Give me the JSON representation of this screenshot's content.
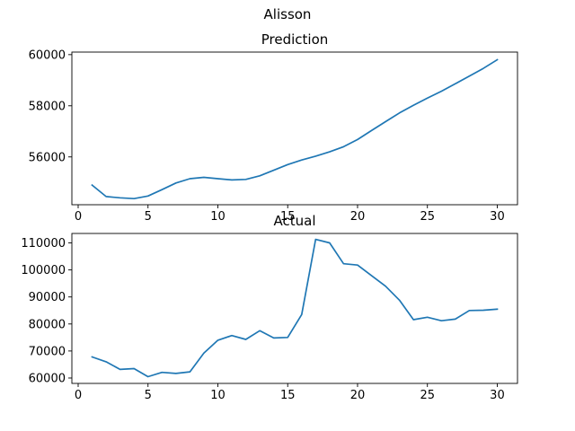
{
  "figure": {
    "suptitle": "Alisson"
  },
  "chart_data": [
    {
      "type": "line",
      "title": "Prediction",
      "xlabel": "",
      "ylabel": "",
      "xlim": [
        -0.45,
        31.45
      ],
      "ylim": [
        54130,
        60100
      ],
      "x_ticks": [
        0,
        5,
        10,
        15,
        20,
        25,
        30
      ],
      "y_ticks": [
        56000,
        58000,
        60000
      ],
      "x_tick_labels": [
        "0",
        "5",
        "10",
        "15",
        "20",
        "25",
        "30"
      ],
      "y_tick_labels": [
        "56000",
        "58000",
        "60000"
      ],
      "grid": false,
      "legend": "none",
      "color": "#1f77b4",
      "x": [
        1,
        2,
        3,
        4,
        5,
        6,
        7,
        8,
        9,
        10,
        11,
        12,
        13,
        14,
        15,
        16,
        17,
        18,
        19,
        20,
        21,
        22,
        23,
        24,
        25,
        26,
        27,
        28,
        29,
        30
      ],
      "values": [
        54900,
        54450,
        54400,
        54370,
        54470,
        54720,
        54980,
        55150,
        55200,
        55150,
        55100,
        55120,
        55260,
        55480,
        55700,
        55880,
        56030,
        56200,
        56400,
        56680,
        57030,
        57380,
        57720,
        58020,
        58300,
        58570,
        58860,
        59160,
        59460,
        59800
      ]
    },
    {
      "type": "line",
      "title": "Actual",
      "xlabel": "",
      "ylabel": "",
      "xlim": [
        -0.45,
        31.45
      ],
      "ylim": [
        58000,
        113500
      ],
      "x_ticks": [
        0,
        5,
        10,
        15,
        20,
        25,
        30
      ],
      "y_ticks": [
        60000,
        70000,
        80000,
        90000,
        100000,
        110000
      ],
      "x_tick_labels": [
        "0",
        "5",
        "10",
        "15",
        "20",
        "25",
        "30"
      ],
      "y_tick_labels": [
        "60000",
        "70000",
        "80000",
        "90000",
        "100000",
        "110000"
      ],
      "grid": false,
      "legend": "none",
      "color": "#1f77b4",
      "x": [
        1,
        2,
        3,
        4,
        5,
        6,
        7,
        8,
        9,
        10,
        11,
        12,
        13,
        14,
        15,
        16,
        17,
        18,
        19,
        20,
        21,
        22,
        23,
        24,
        25,
        26,
        27,
        28,
        29,
        30
      ],
      "values": [
        67800,
        66000,
        63200,
        63500,
        60500,
        62100,
        61700,
        62300,
        69200,
        74000,
        75700,
        74300,
        77500,
        74800,
        75000,
        83500,
        111300,
        110000,
        102300,
        101800,
        97900,
        94000,
        88800,
        81600,
        82500,
        81200,
        81800,
        85000,
        85100,
        85500
      ]
    }
  ]
}
